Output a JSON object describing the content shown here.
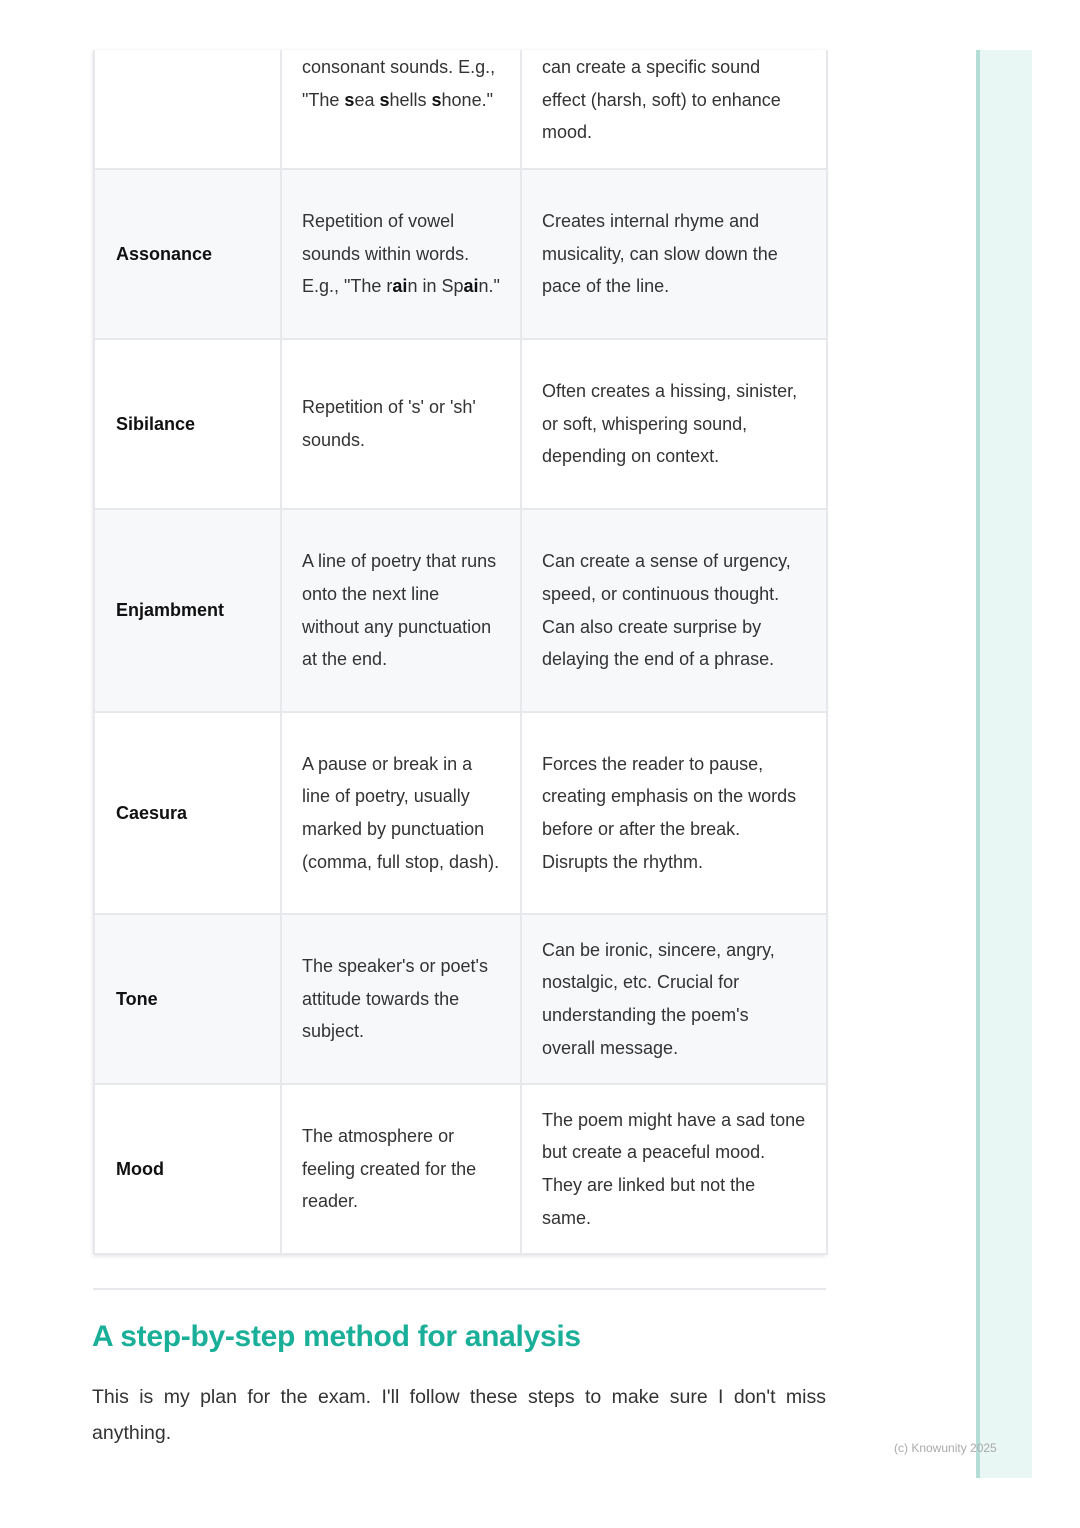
{
  "table": {
    "rows": [
      {
        "term": "",
        "definition": [
          {
            "t": "consonant sounds. E.g., \"The "
          },
          {
            "t": "s",
            "b": true
          },
          {
            "t": "ea "
          },
          {
            "t": "s",
            "b": true
          },
          {
            "t": "hells "
          },
          {
            "t": "s",
            "b": true
          },
          {
            "t": "hone.\""
          }
        ],
        "effect": "can create a specific sound effect (harsh, soft) to enhance mood.",
        "partial": true
      },
      {
        "term": "Assonance",
        "definition": [
          {
            "t": "Repetition of vowel sounds within words. E.g., \"The r"
          },
          {
            "t": "ai",
            "b": true
          },
          {
            "t": "n in Sp"
          },
          {
            "t": "ai",
            "b": true
          },
          {
            "t": "n.\""
          }
        ],
        "effect": "Creates internal rhyme and musicality, can slow down the pace of the line."
      },
      {
        "term": "Sibilance",
        "definition": [
          {
            "t": "Repetition of 's' or 'sh' sounds."
          }
        ],
        "effect": "Often creates a hissing, sinister, or soft, whispering sound, depending on context."
      },
      {
        "term": "Enjambment",
        "definition": [
          {
            "t": "A line of poetry that runs onto the next line without any punctuation at the end."
          }
        ],
        "effect": "Can create a sense of urgency, speed, or continuous thought. Can also create surprise by delaying the end of a phrase."
      },
      {
        "term": "Caesura",
        "definition": [
          {
            "t": "A pause or break in a line of poetry, usually marked by punctuation (comma, full stop, dash)."
          }
        ],
        "effect": "Forces the reader to pause, creating emphasis on the words before or after the break. Disrupts the rhythm."
      },
      {
        "term": "Tone",
        "definition": [
          {
            "t": "The speaker's or poet's attitude towards the subject."
          }
        ],
        "effect": "Can be ironic, sincere, angry, nostalgic, etc. Crucial for understanding the poem's overall message."
      },
      {
        "term": "Mood",
        "definition": [
          {
            "t": "The atmosphere or feeling created for the reader."
          }
        ],
        "effect": "The poem might have a sad tone but create a peaceful mood. They are linked but not the same."
      }
    ]
  },
  "section": {
    "heading": "A step-by-step method for analysis",
    "paragraph": "This is my plan for the exam. I'll follow these steps to make sure I don't miss anything."
  },
  "footer": {
    "copyright": "(c) Knowunity 2025"
  },
  "colors": {
    "accent": "#1aaf98",
    "side_panel": "#e8f6f4",
    "side_border": "#b5ddd8",
    "alt_row": "#f6f8fa"
  }
}
